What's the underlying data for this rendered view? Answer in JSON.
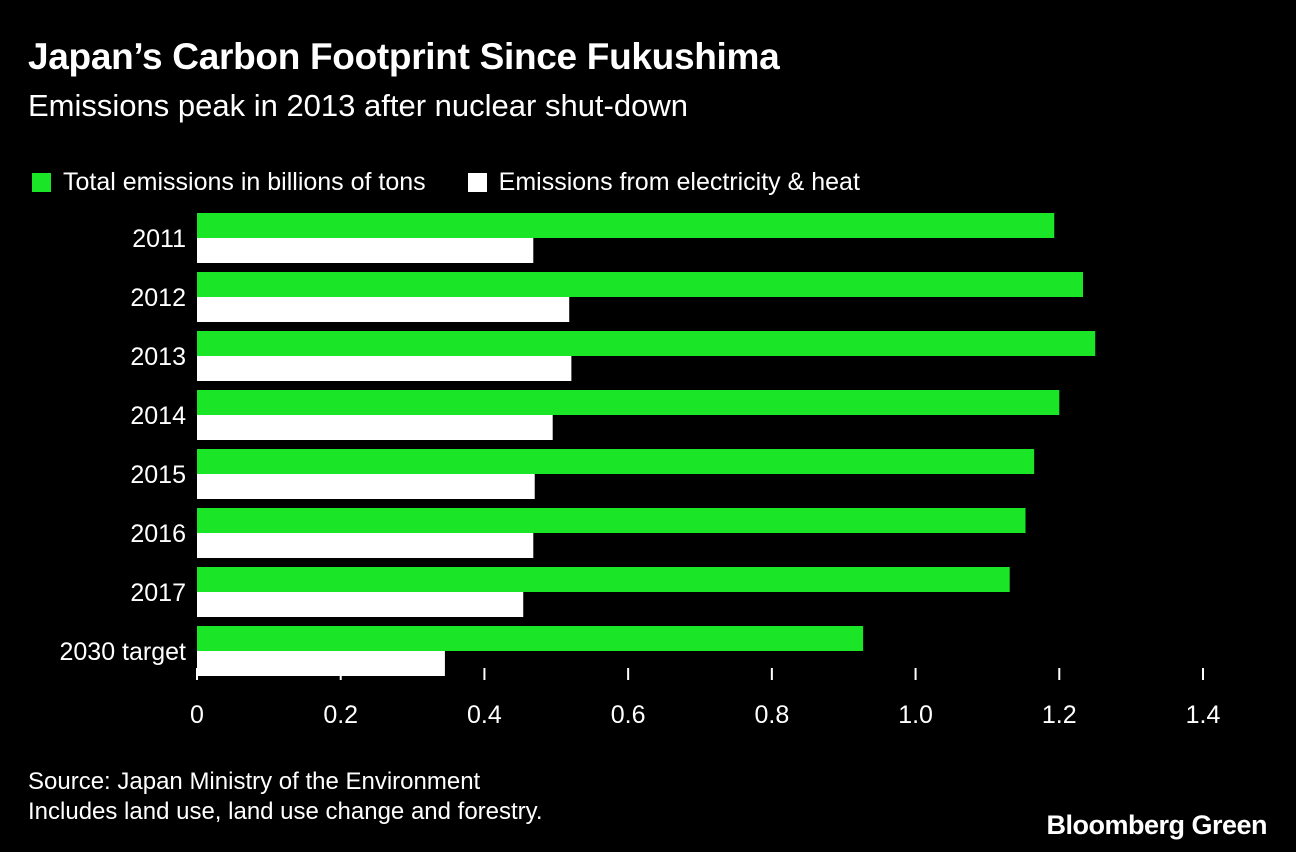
{
  "header": {
    "title": "Japan’s Carbon Footprint Since Fukushima",
    "subtitle": "Emissions peak in 2013 after nuclear shut-down"
  },
  "legend": {
    "items": [
      {
        "label": "Total emissions in billions of tons",
        "color": "#1ae526"
      },
      {
        "label": "Emissions from electricity & heat",
        "color": "#ffffff"
      }
    ]
  },
  "chart_data": {
    "type": "bar",
    "orientation": "horizontal",
    "title": "Japan’s Carbon Footprint Since Fukushima",
    "subtitle": "Emissions peak in 2013 after nuclear shut-down",
    "categories": [
      "2011",
      "2012",
      "2013",
      "2014",
      "2015",
      "2016",
      "2017",
      "2030 target"
    ],
    "series": [
      {
        "name": "Total emissions in billions of tons",
        "color": "#1ae526",
        "values": [
          1.193,
          1.233,
          1.25,
          1.2,
          1.165,
          1.153,
          1.131,
          0.927
        ]
      },
      {
        "name": "Emissions from electricity & heat",
        "color": "#ffffff",
        "values": [
          0.468,
          0.518,
          0.521,
          0.495,
          0.47,
          0.468,
          0.454,
          0.345
        ]
      }
    ],
    "xlim": [
      0,
      1.4
    ],
    "xticks": [
      "0",
      "0.2",
      "0.4",
      "0.6",
      "0.8",
      "1.0",
      "1.2",
      "1.4"
    ],
    "xtick_values": [
      0,
      0.2,
      0.4,
      0.6,
      0.8,
      1.0,
      1.2,
      1.4
    ],
    "grid": false,
    "legend_position": "top-left"
  },
  "footer": {
    "source": "Source: Japan Ministry of the Environment",
    "note": "Includes land use, land use change and forestry.",
    "brand": "Bloomberg Green"
  }
}
